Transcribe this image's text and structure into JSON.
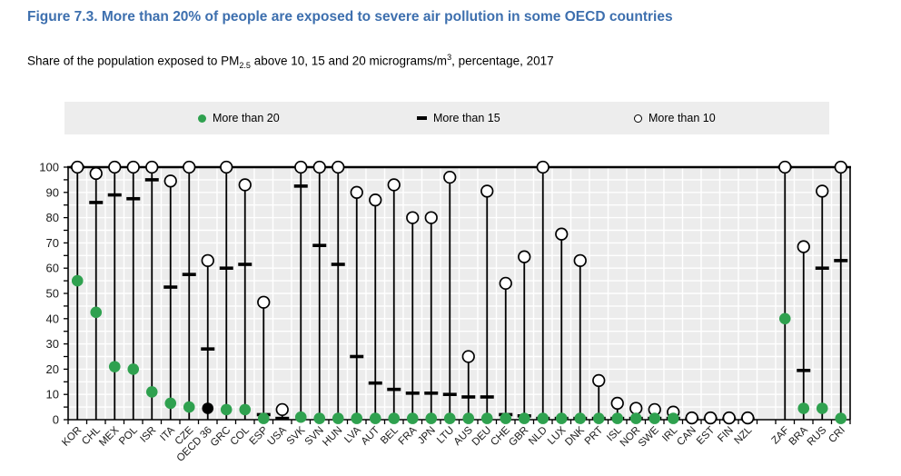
{
  "figure": {
    "title": "Figure 7.3. More than 20% of people are exposed to severe air pollution in some OECD countries",
    "subtitle_pre": "Share of the population exposed to PM",
    "subtitle_sub": "2.5",
    "subtitle_mid": " above 10, 15 and 20 micrograms/m",
    "subtitle_sup": "3",
    "subtitle_post": ", percentage, 2017"
  },
  "legend": {
    "items": [
      {
        "label": "More than 20",
        "marker": "filled-dot-icon",
        "color": "#2fa14f"
      },
      {
        "label": "More than 15",
        "marker": "dash-icon",
        "color": "#000000"
      },
      {
        "label": "More than 10",
        "marker": "open-circle-icon",
        "color": "#000000"
      }
    ],
    "background": "#ededed"
  },
  "chart_data": {
    "type": "scatter",
    "title": "Figure 7.3. More than 20% of people are exposed to severe air pollution in some OECD countries",
    "subtitle": "Share of the population exposed to PM2.5 above 10, 15 and 20 micrograms/m3, percentage, 2017",
    "xlabel": "",
    "ylabel": "",
    "ylim": [
      0,
      100
    ],
    "ytick_step": 10,
    "grid": true,
    "legend_position": "top",
    "plot_background": "#ececec",
    "gridline_color": "#ffffff",
    "marker_green": "#2fa14f",
    "marker_black": "#000000",
    "highlight_category": "OECD 36",
    "gap_after_index": 36,
    "categories": [
      "KOR",
      "CHL",
      "MEX",
      "POL",
      "ISR",
      "ITA",
      "CZE",
      "OECD 36",
      "GRC",
      "COL",
      "ESP",
      "USA",
      "SVK",
      "SVN",
      "HUN",
      "LVA",
      "AUT",
      "BEL",
      "FRA",
      "JPN",
      "LTU",
      "AUS",
      "DEU",
      "CHE",
      "GBR",
      "NLD",
      "LUX",
      "DNK",
      "PRT",
      "ISL",
      "NOR",
      "SWE",
      "IRL",
      "CAN",
      "EST",
      "FIN",
      "NZL",
      "ZAF",
      "BRA",
      "RUS",
      "CRI"
    ],
    "series": [
      {
        "name": "More than 10",
        "marker": "open-circle",
        "values": [
          100,
          97.5,
          100,
          100,
          100,
          94.5,
          100,
          63,
          100,
          93,
          46.5,
          4,
          100,
          100,
          100,
          90,
          87,
          93,
          80,
          80,
          96,
          25,
          90.5,
          54,
          64.5,
          100,
          73.5,
          63,
          15.5,
          6.5,
          4.5,
          4,
          3,
          0.7,
          0.7,
          0.7,
          0.7,
          100,
          68.5,
          90.5,
          100
        ]
      },
      {
        "name": "More than 15",
        "marker": "dash",
        "values": [
          100,
          86,
          89,
          87.5,
          95,
          52.5,
          57.5,
          28,
          60,
          61.5,
          2,
          0.5,
          92.5,
          69,
          61.5,
          25,
          14.5,
          12,
          10.5,
          10.5,
          10,
          9,
          9,
          2,
          1.5,
          0.5,
          0.5,
          0.5,
          0.5,
          0.5,
          0.5,
          0.5,
          0.5,
          0.3,
          0.3,
          0.3,
          0.3,
          100,
          19.5,
          60,
          63
        ]
      },
      {
        "name": "More than 20",
        "marker": "filled-dot",
        "values": [
          55,
          42.5,
          21,
          20,
          11,
          6.5,
          5,
          4.5,
          4,
          4,
          0.5,
          null,
          1,
          0.5,
          0.5,
          0.5,
          0.5,
          0.5,
          0.5,
          0.5,
          0.5,
          0.5,
          0.5,
          0.5,
          0.5,
          0.5,
          0.5,
          0.5,
          0.5,
          0.5,
          0.5,
          0.5,
          0.5,
          null,
          null,
          null,
          null,
          40,
          4.5,
          4.5,
          0.5
        ]
      }
    ]
  }
}
